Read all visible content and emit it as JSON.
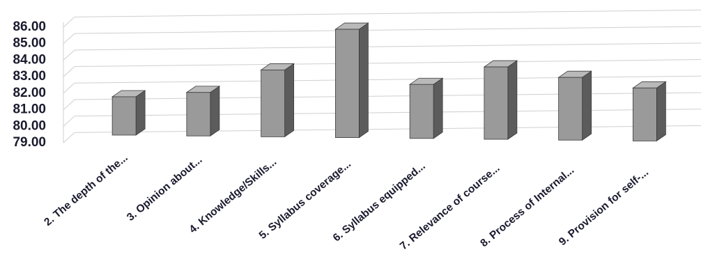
{
  "chart_data": {
    "type": "bar",
    "title": "",
    "xlabel": "",
    "ylabel": "",
    "categories": [
      "2. The depth of the...",
      "3. Opinion about...",
      "4. Knowledge/Skills...",
      "5. Syllabus coverage...",
      "6. Syllabus equipped...",
      "7. Relevance of course...",
      "8. Process of Internal...",
      "9. Provision for self-..."
    ],
    "values": [
      81.7,
      82.0,
      83.4,
      85.9,
      82.6,
      83.7,
      83.1,
      82.5
    ],
    "ylim": [
      79.0,
      86.0
    ],
    "yticks": [
      "79.00",
      "80.00",
      "81.00",
      "82.00",
      "83.00",
      "84.00",
      "85.00",
      "86.00"
    ],
    "grid": true,
    "style": "3d-column",
    "colors": {
      "bar_front": "#9a9a9a",
      "bar_side": "#5c5c5c",
      "bar_top": "#b9b9b9",
      "grid": "#cfcfcf",
      "text": "#1a1a2e"
    }
  }
}
